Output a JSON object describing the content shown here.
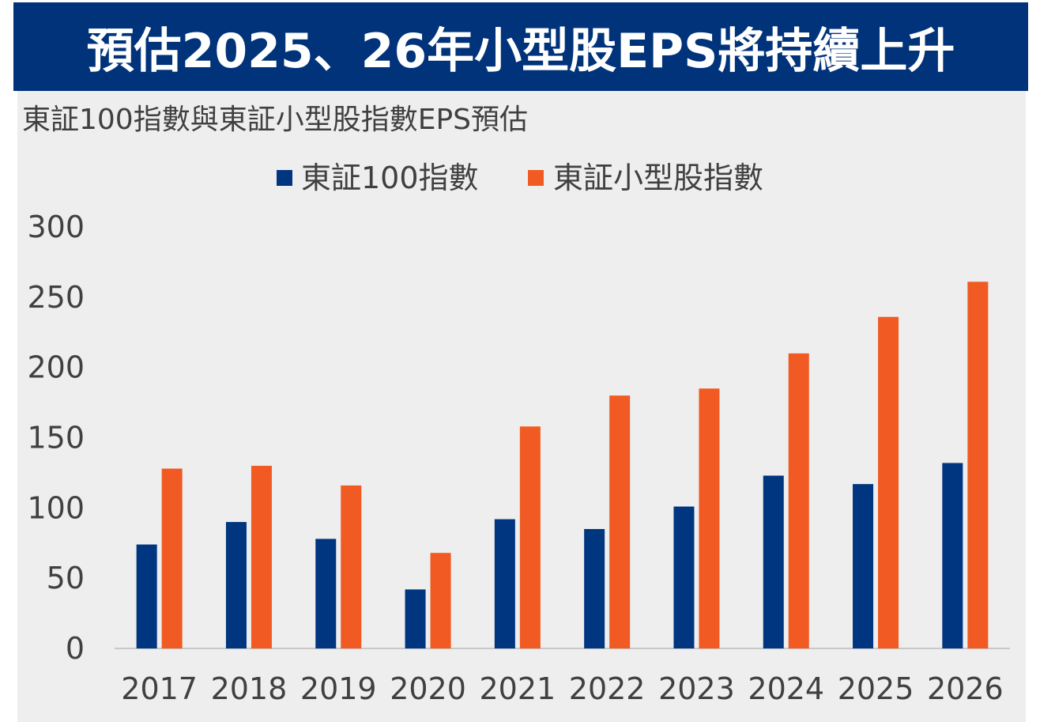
{
  "title": "預估2025、26年小型股EPS將持續上升",
  "colors": {
    "title_bg": "#00337a",
    "plot_bg": "#eeeeee",
    "series_topix100": "#003580",
    "series_small": "#f15a22",
    "text": "#404040",
    "axis_line": "#c8c8c8"
  },
  "chart_data": {
    "type": "bar",
    "title": "東証100指數與東証小型股指數EPS預估",
    "categories": [
      "2017",
      "2018",
      "2019",
      "2020",
      "2021",
      "2022",
      "2023",
      "2024",
      "2025",
      "2026"
    ],
    "series": [
      {
        "name": "東証100指數",
        "values": [
          74,
          90,
          78,
          42,
          92,
          85,
          101,
          123,
          117,
          132
        ]
      },
      {
        "name": "東証小型股指數",
        "values": [
          128,
          130,
          116,
          68,
          158,
          180,
          185,
          210,
          236,
          261
        ]
      }
    ],
    "yticks": [
      "300",
      "250",
      "200",
      "150",
      "100",
      "50",
      "0"
    ],
    "ylim": [
      0,
      300
    ],
    "legend_position": "top-center",
    "grid": false
  }
}
